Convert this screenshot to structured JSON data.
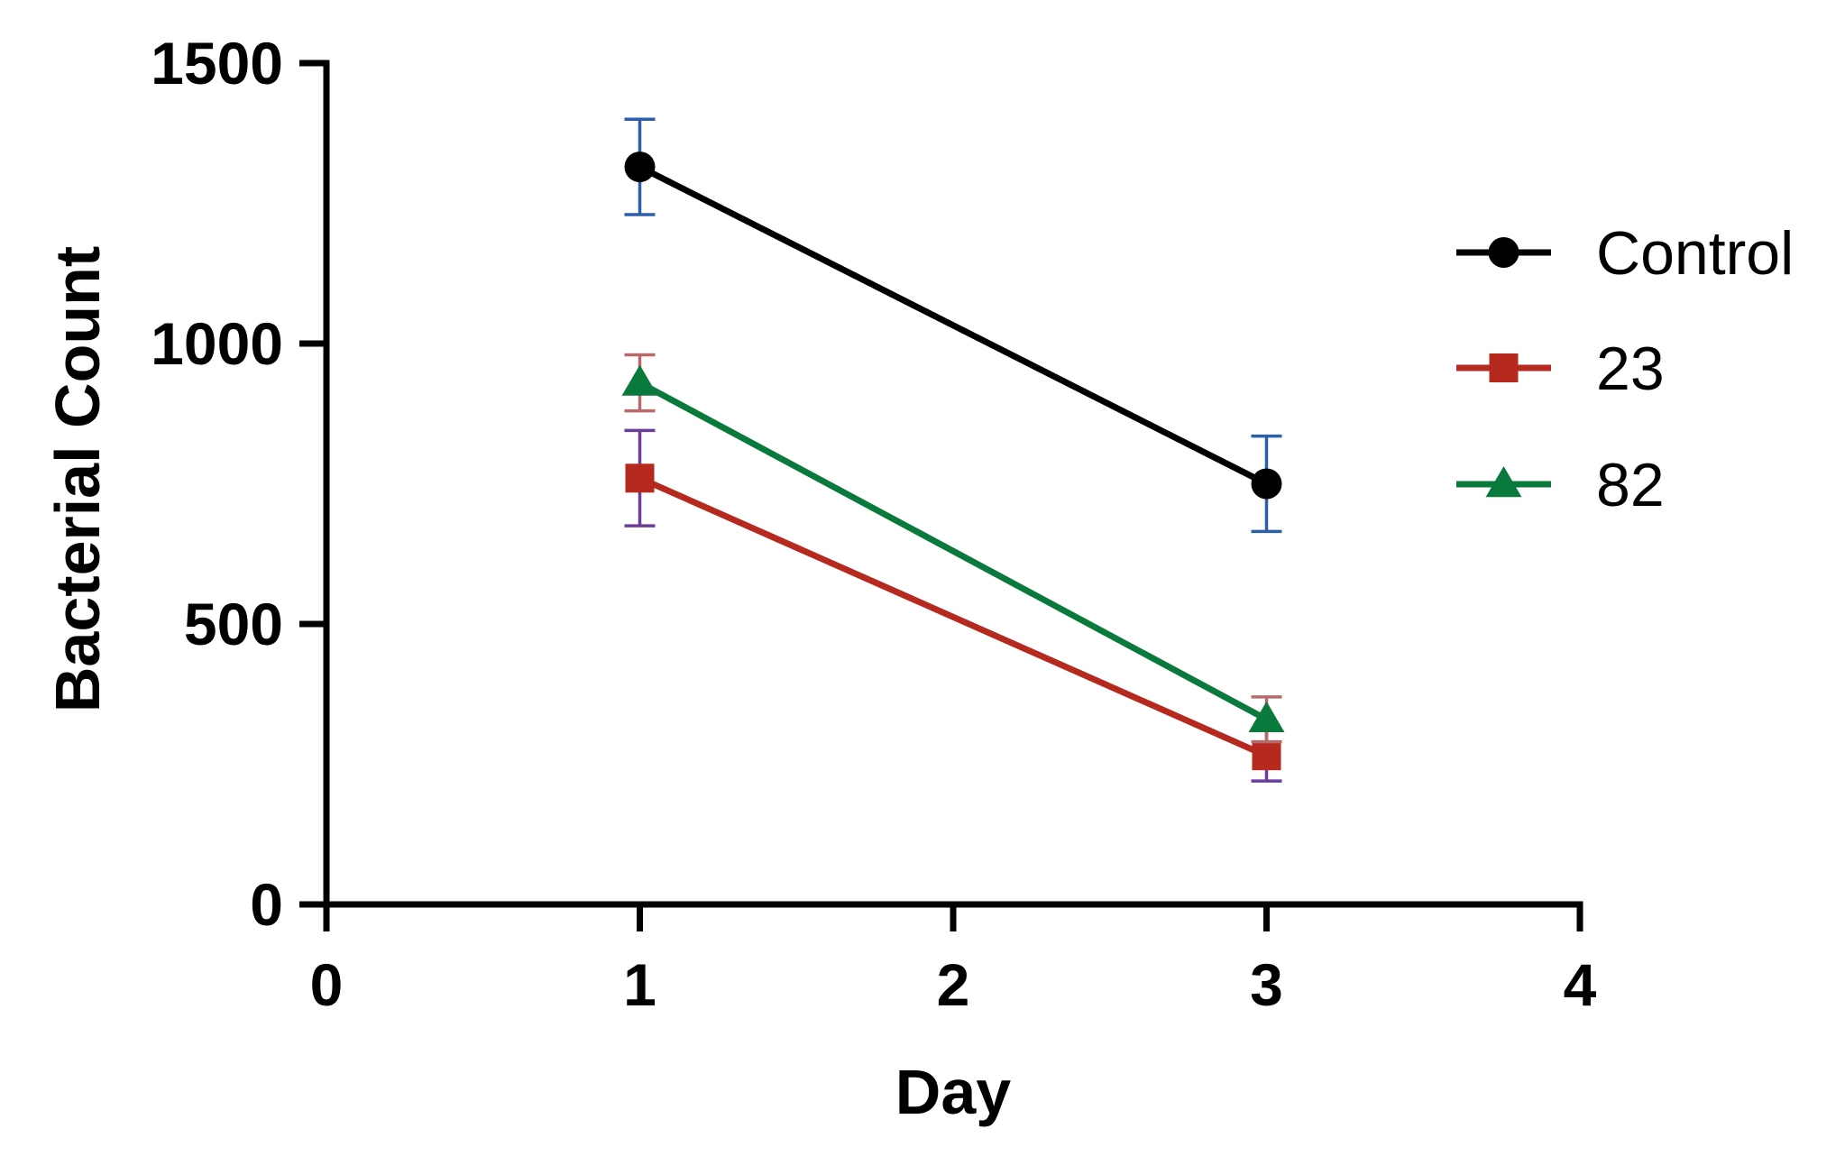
{
  "chart_data": {
    "type": "line",
    "title": "",
    "xlabel": "Day",
    "ylabel": "Bacterial Count",
    "xlim": [
      0,
      4
    ],
    "ylim": [
      0,
      1500
    ],
    "xticks": [
      0,
      1,
      2,
      3,
      4
    ],
    "yticks": [
      0,
      500,
      1000,
      1500
    ],
    "grid": false,
    "legend_position": "right",
    "error_bars": true,
    "series": [
      {
        "name": "Control",
        "color": "#000000",
        "errorbar_color": "#2b5fa8",
        "marker": "circle",
        "x": [
          1,
          3
        ],
        "y": [
          1315,
          750
        ],
        "error": [
          85,
          85
        ]
      },
      {
        "name": "23",
        "color": "#b5291f",
        "errorbar_color": "#6a3d9a",
        "marker": "square",
        "x": [
          1,
          3
        ],
        "y": [
          760,
          265
        ],
        "error": [
          85,
          45
        ]
      },
      {
        "name": "82",
        "color": "#0a7a3c",
        "errorbar_color": "#b86a6a",
        "marker": "triangle",
        "x": [
          1,
          3
        ],
        "y": [
          930,
          330
        ],
        "error": [
          50,
          40
        ]
      }
    ]
  }
}
